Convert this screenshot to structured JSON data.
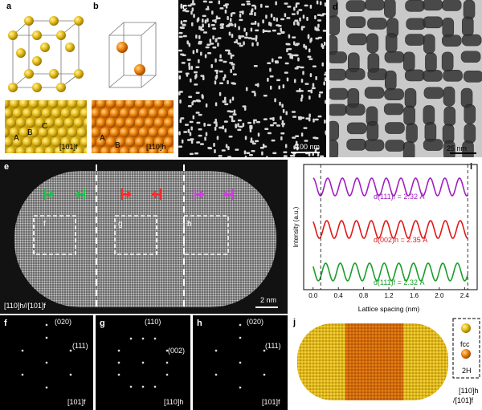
{
  "panels": {
    "a": {
      "label": "a",
      "zone": "[101]f",
      "atoms": [
        "A",
        "B",
        "C"
      ]
    },
    "b": {
      "label": "b",
      "zone": "[110]h",
      "atoms": [
        "A",
        "B"
      ]
    },
    "c": {
      "label": "c",
      "scale": "100 nm"
    },
    "d": {
      "label": "d",
      "scale": "25 nm"
    },
    "e": {
      "label": "e",
      "zone": "[110]h//[101]f",
      "scale": "2 nm",
      "boxes": [
        "f",
        "g",
        "h"
      ]
    },
    "f": {
      "label": "f",
      "spots": [
        "(020)",
        "(111)"
      ],
      "zone": "[101]f"
    },
    "g": {
      "label": "g",
      "spots": [
        "(110)",
        "(002)"
      ],
      "zone": "[110]h"
    },
    "h": {
      "label": "h",
      "spots": [
        "(020)",
        "(111)"
      ],
      "zone": "[101]f"
    },
    "j": {
      "label": "j",
      "legend": [
        "fcc",
        "2H"
      ],
      "zone_top": "[110]h",
      "zone_bottom": "/[101]f"
    }
  },
  "chart_data": {
    "type": "line",
    "label": "i",
    "xlabel": "Lattice spacing (nm)",
    "ylabel": "Intensity (a.u.)",
    "xlim": [
      -0.15,
      2.6
    ],
    "xticks": [
      "0.0",
      "0.4",
      "0.8",
      "1.2",
      "1.6",
      "2.0",
      "2.4"
    ],
    "markers": [
      0.12,
      2.45
    ],
    "series": [
      {
        "name": "d(111)f = 2.32 Å",
        "color": "#a020c0",
        "period": 0.232,
        "offset": 0.0
      },
      {
        "name": "d(002)h = 2.35 Å",
        "color": "#e01818",
        "period": 0.235,
        "offset": 0.5
      },
      {
        "name": "d(111)f = 2.32 Å",
        "color": "#1a9e2a",
        "period": 0.232,
        "offset": 0.9
      }
    ]
  }
}
